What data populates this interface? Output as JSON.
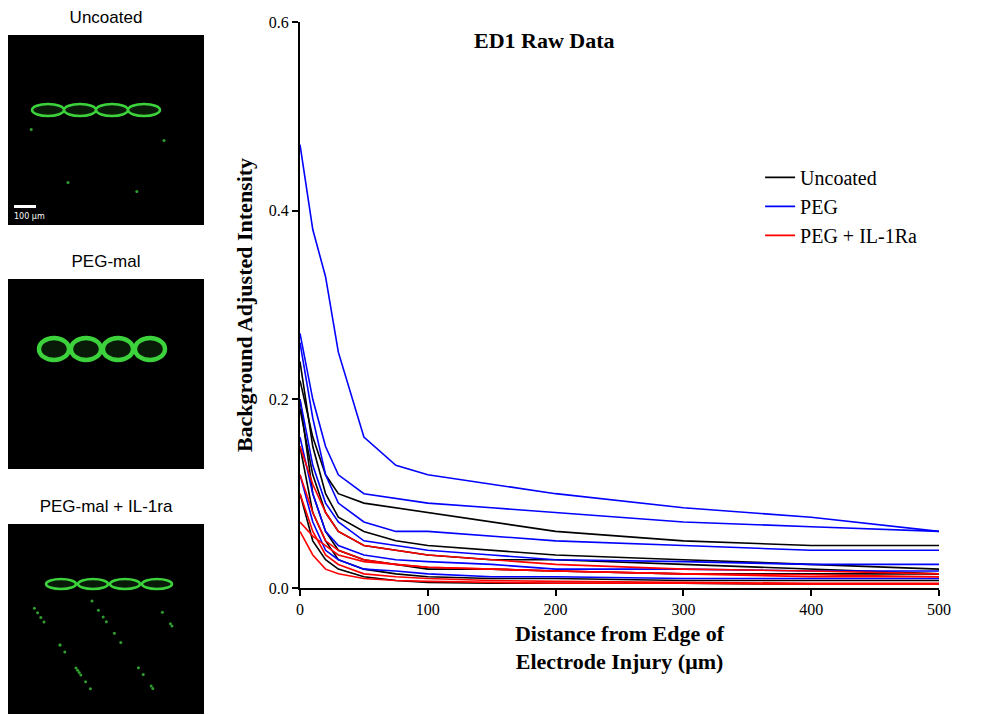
{
  "panels": [
    {
      "label": "Uncoated"
    },
    {
      "label": "PEG-mal"
    },
    {
      "label": "PEG-mal + IL-1ra"
    }
  ],
  "scale_bar": "100 μm",
  "chart_data": {
    "type": "line",
    "title": "ED1 Raw Data",
    "x_label": "Distance from Edge of Electrode Injury (μm)",
    "y_label": "Background Adjusted Intensity",
    "xlim": [
      0,
      500
    ],
    "xticks": [
      0,
      100,
      200,
      300,
      400,
      500
    ],
    "ylim": [
      0,
      0.6
    ],
    "yticks": [
      {
        "value": 0,
        "label": "0.0"
      },
      0.2,
      0.4,
      0.6
    ],
    "grid": false,
    "legend": "upper right",
    "x": [
      0,
      10,
      20,
      30,
      50,
      75,
      100,
      150,
      200,
      300,
      400,
      500
    ],
    "series": [
      {
        "name": "Uncoated",
        "color": "#000000",
        "values": [
          0.24,
          0.15,
          0.1,
          0.075,
          0.06,
          0.05,
          0.045,
          0.04,
          0.035,
          0.03,
          0.025,
          0.02
        ]
      },
      {
        "name": "Uncoated",
        "color": "#000000",
        "values": [
          0.22,
          0.16,
          0.12,
          0.1,
          0.09,
          0.085,
          0.08,
          0.07,
          0.06,
          0.05,
          0.045,
          0.045
        ]
      },
      {
        "name": "Uncoated",
        "color": "#000000",
        "values": [
          0.19,
          0.12,
          0.08,
          0.06,
          0.045,
          0.04,
          0.035,
          0.03,
          0.03,
          0.025,
          0.02,
          0.015
        ]
      },
      {
        "name": "Uncoated",
        "color": "#000000",
        "values": [
          0.15,
          0.08,
          0.05,
          0.03,
          0.02,
          0.015,
          0.012,
          0.01,
          0.01,
          0.008,
          0.008,
          0.008
        ]
      },
      {
        "name": "Uncoated",
        "color": "#000000",
        "values": [
          0.1,
          0.05,
          0.03,
          0.02,
          0.012,
          0.008,
          0.006,
          0.005,
          0.005,
          0.005,
          0.004,
          0.004
        ]
      },
      {
        "name": "Uncoated",
        "color": "#000000",
        "values": [
          0.2,
          0.1,
          0.06,
          0.04,
          0.03,
          0.025,
          0.02,
          0.02,
          0.018,
          0.015,
          0.015,
          0.015
        ]
      },
      {
        "name": "PEG",
        "color": "#0000ff",
        "values": [
          0.47,
          0.38,
          0.33,
          0.25,
          0.16,
          0.13,
          0.12,
          0.11,
          0.1,
          0.085,
          0.075,
          0.06
        ]
      },
      {
        "name": "PEG",
        "color": "#0000ff",
        "values": [
          0.27,
          0.2,
          0.15,
          0.12,
          0.1,
          0.095,
          0.09,
          0.085,
          0.08,
          0.07,
          0.065,
          0.06
        ]
      },
      {
        "name": "PEG",
        "color": "#0000ff",
        "values": [
          0.26,
          0.18,
          0.12,
          0.09,
          0.07,
          0.06,
          0.06,
          0.055,
          0.05,
          0.045,
          0.04,
          0.04
        ]
      },
      {
        "name": "PEG",
        "color": "#0000ff",
        "values": [
          0.2,
          0.13,
          0.09,
          0.07,
          0.05,
          0.045,
          0.04,
          0.035,
          0.03,
          0.028,
          0.025,
          0.025
        ]
      },
      {
        "name": "PEG",
        "color": "#0000ff",
        "values": [
          0.16,
          0.1,
          0.06,
          0.045,
          0.035,
          0.03,
          0.028,
          0.025,
          0.02,
          0.02,
          0.018,
          0.018
        ]
      },
      {
        "name": "PEG",
        "color": "#0000ff",
        "values": [
          0.12,
          0.07,
          0.04,
          0.03,
          0.02,
          0.018,
          0.015,
          0.012,
          0.012,
          0.01,
          0.01,
          0.01
        ]
      },
      {
        "name": "PEG + IL-1Ra",
        "color": "#ff0000",
        "values": [
          0.15,
          0.11,
          0.08,
          0.06,
          0.045,
          0.04,
          0.035,
          0.03,
          0.025,
          0.02,
          0.018,
          0.015
        ]
      },
      {
        "name": "PEG + IL-1Ra",
        "color": "#ff0000",
        "values": [
          0.12,
          0.08,
          0.05,
          0.04,
          0.03,
          0.025,
          0.022,
          0.02,
          0.018,
          0.015,
          0.012,
          0.012
        ]
      },
      {
        "name": "PEG + IL-1Ra",
        "color": "#ff0000",
        "values": [
          0.07,
          0.055,
          0.045,
          0.035,
          0.028,
          0.025,
          0.022,
          0.02,
          0.018,
          0.015,
          0.014,
          0.012
        ]
      },
      {
        "name": "PEG + IL-1Ra",
        "color": "#ff0000",
        "values": [
          0.1,
          0.06,
          0.035,
          0.025,
          0.015,
          0.012,
          0.01,
          0.008,
          0.007,
          0.006,
          0.005,
          0.005
        ]
      },
      {
        "name": "PEG + IL-1Ra",
        "color": "#ff0000",
        "values": [
          0.06,
          0.035,
          0.02,
          0.015,
          0.01,
          0.008,
          0.007,
          0.006,
          0.005,
          0.005,
          0.004,
          0.004
        ]
      }
    ]
  }
}
